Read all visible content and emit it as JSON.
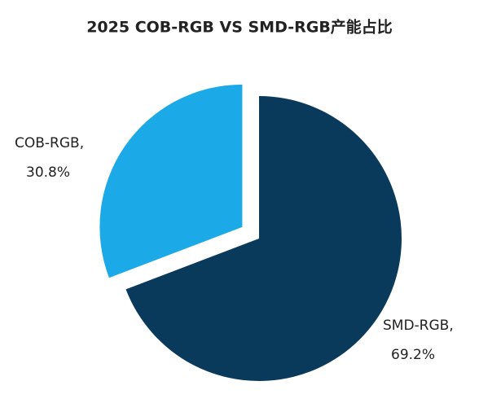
{
  "chart_data": {
    "type": "pie",
    "title": "2025 COB-RGB VS SMD-RGB产能占比",
    "categories": [
      "COB-RGB,",
      "SMD-RGB,"
    ],
    "values": [
      30.8,
      69.2
    ],
    "value_labels": [
      "30.8%",
      "69.2%"
    ],
    "colors": [
      "#1ba9e8",
      "#0a3a5b"
    ],
    "exploded": [
      true,
      false
    ]
  }
}
